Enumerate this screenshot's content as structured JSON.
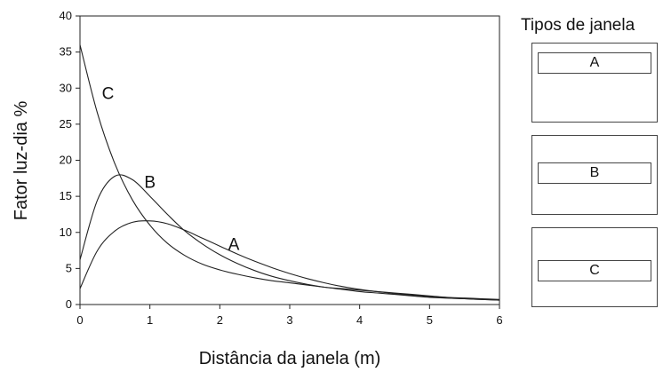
{
  "chart_data": {
    "type": "line",
    "xlabel": "Distância da janela (m)",
    "ylabel": "Fator luz-dia %",
    "xlim": [
      0,
      6
    ],
    "ylim": [
      0,
      40
    ],
    "xticks": [
      "0",
      "1",
      "2",
      "3",
      "4",
      "5",
      "6"
    ],
    "yticks": [
      "0",
      "5",
      "10",
      "15",
      "20",
      "25",
      "30",
      "35",
      "40"
    ],
    "grid": false,
    "x": [
      0,
      0.25,
      0.5,
      0.75,
      1,
      1.25,
      1.5,
      1.75,
      2,
      2.25,
      2.5,
      2.75,
      3,
      3.25,
      3.5,
      3.75,
      4,
      4.25,
      4.5,
      4.75,
      5,
      5.25,
      5.5,
      5.75,
      6
    ],
    "series": [
      {
        "name": "A",
        "values": [
          2.2,
          7.5,
          10.2,
          11.4,
          11.6,
          11.2,
          10.3,
          9.2,
          8.1,
          7.0,
          6.0,
          5.1,
          4.3,
          3.6,
          3.0,
          2.5,
          2.1,
          1.8,
          1.5,
          1.3,
          1.1,
          0.9,
          0.8,
          0.7,
          0.6
        ]
      },
      {
        "name": "B",
        "values": [
          6.2,
          14.5,
          17.8,
          17.3,
          15.0,
          12.5,
          10.2,
          8.4,
          6.9,
          5.7,
          4.7,
          3.9,
          3.3,
          2.8,
          2.4,
          2.1,
          1.8,
          1.6,
          1.4,
          1.2,
          1.0,
          0.9,
          0.8,
          0.7,
          0.6
        ]
      },
      {
        "name": "C",
        "values": [
          36.0,
          26.5,
          19.5,
          14.5,
          11.0,
          8.5,
          6.8,
          5.6,
          4.8,
          4.2,
          3.7,
          3.3,
          3.0,
          2.7,
          2.4,
          2.2,
          2.0,
          1.8,
          1.6,
          1.4,
          1.2,
          1.0,
          0.9,
          0.8,
          0.7
        ]
      }
    ],
    "curve_labels": [
      {
        "text": "A",
        "x": 2.2,
        "y": 7.6
      },
      {
        "text": "B",
        "x": 1.0,
        "y": 16.2
      },
      {
        "text": "C",
        "x": 0.4,
        "y": 28.5
      }
    ]
  },
  "legend": {
    "title": "Tipos de janela",
    "windows": [
      {
        "label": "A"
      },
      {
        "label": "B"
      },
      {
        "label": "C"
      }
    ]
  }
}
